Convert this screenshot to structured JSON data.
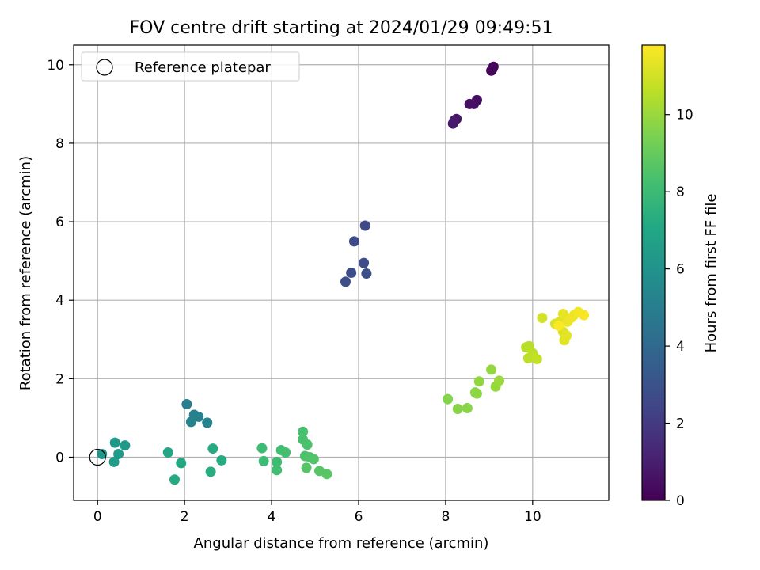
{
  "chart_data": {
    "type": "scatter",
    "title": "FOV centre drift starting at 2024/01/29 09:49:51",
    "xlabel": "Angular distance from reference (arcmin)",
    "ylabel": "Rotation from reference (arcmin)",
    "xlim": [
      -0.55,
      11.75
    ],
    "ylim": [
      -1.1,
      10.5
    ],
    "x_ticks": [
      "0",
      "2",
      "4",
      "6",
      "8",
      "10"
    ],
    "y_ticks": [
      "0",
      "2",
      "4",
      "6",
      "8",
      "10"
    ],
    "grid": true,
    "legend": {
      "placement": "upper-left",
      "entries": [
        "Reference platepar"
      ]
    },
    "reference_point": {
      "x": 0,
      "y": 0,
      "label": "Reference platepar"
    },
    "colorbar": {
      "label": "Hours from first FF file",
      "range": [
        0,
        11.8
      ],
      "ticks": [
        "0",
        "2",
        "4",
        "6",
        "8",
        "10"
      ],
      "colormap": "viridis"
    },
    "points": [
      {
        "x": 9.1,
        "y": 9.95,
        "t": 0.1
      },
      {
        "x": 9.05,
        "y": 9.85,
        "t": 0.15
      },
      {
        "x": 9.08,
        "y": 9.9,
        "t": 0.2
      },
      {
        "x": 8.72,
        "y": 9.1,
        "t": 0.4
      },
      {
        "x": 8.55,
        "y": 9.0,
        "t": 0.5
      },
      {
        "x": 8.65,
        "y": 9.0,
        "t": 0.55
      },
      {
        "x": 8.25,
        "y": 8.62,
        "t": 0.7
      },
      {
        "x": 8.17,
        "y": 8.5,
        "t": 0.8
      },
      {
        "x": 8.2,
        "y": 8.58,
        "t": 0.85
      },
      {
        "x": 6.15,
        "y": 5.9,
        "t": 2.6
      },
      {
        "x": 5.9,
        "y": 5.5,
        "t": 2.65
      },
      {
        "x": 6.12,
        "y": 4.95,
        "t": 2.7
      },
      {
        "x": 5.83,
        "y": 4.7,
        "t": 2.75
      },
      {
        "x": 6.18,
        "y": 4.68,
        "t": 2.8
      },
      {
        "x": 5.7,
        "y": 4.47,
        "t": 2.85
      },
      {
        "x": 2.05,
        "y": 1.35,
        "t": 5.0
      },
      {
        "x": 2.22,
        "y": 1.08,
        "t": 5.1
      },
      {
        "x": 2.32,
        "y": 1.03,
        "t": 5.15
      },
      {
        "x": 2.15,
        "y": 0.9,
        "t": 5.2
      },
      {
        "x": 2.52,
        "y": 0.88,
        "t": 5.25
      },
      {
        "x": 0.1,
        "y": 0.08,
        "t": 6.2
      },
      {
        "x": 0.4,
        "y": 0.37,
        "t": 6.3
      },
      {
        "x": 0.63,
        "y": 0.3,
        "t": 6.35
      },
      {
        "x": 0.48,
        "y": 0.08,
        "t": 6.4
      },
      {
        "x": 0.38,
        "y": -0.12,
        "t": 6.45
      },
      {
        "x": 1.62,
        "y": 0.12,
        "t": 7.0
      },
      {
        "x": 1.92,
        "y": -0.15,
        "t": 7.1
      },
      {
        "x": 1.77,
        "y": -0.57,
        "t": 7.15
      },
      {
        "x": 2.65,
        "y": 0.22,
        "t": 7.2
      },
      {
        "x": 2.85,
        "y": -0.08,
        "t": 7.25
      },
      {
        "x": 2.6,
        "y": -0.37,
        "t": 7.3
      },
      {
        "x": 3.78,
        "y": 0.23,
        "t": 8.0
      },
      {
        "x": 3.82,
        "y": -0.1,
        "t": 8.05
      },
      {
        "x": 4.12,
        "y": -0.12,
        "t": 8.1
      },
      {
        "x": 4.12,
        "y": -0.33,
        "t": 8.15
      },
      {
        "x": 4.22,
        "y": 0.18,
        "t": 8.2
      },
      {
        "x": 4.32,
        "y": 0.12,
        "t": 8.25
      },
      {
        "x": 4.72,
        "y": 0.65,
        "t": 8.3
      },
      {
        "x": 4.72,
        "y": 0.45,
        "t": 8.35
      },
      {
        "x": 4.82,
        "y": 0.32,
        "t": 8.4
      },
      {
        "x": 4.77,
        "y": 0.03,
        "t": 8.45
      },
      {
        "x": 4.88,
        "y": 0.0,
        "t": 8.5
      },
      {
        "x": 4.97,
        "y": -0.05,
        "t": 8.55
      },
      {
        "x": 4.8,
        "y": -0.27,
        "t": 8.6
      },
      {
        "x": 5.1,
        "y": -0.35,
        "t": 8.65
      },
      {
        "x": 5.27,
        "y": -0.43,
        "t": 8.7
      },
      {
        "x": 8.05,
        "y": 1.48,
        "t": 9.6
      },
      {
        "x": 8.28,
        "y": 1.23,
        "t": 9.65
      },
      {
        "x": 8.5,
        "y": 1.25,
        "t": 9.7
      },
      {
        "x": 8.68,
        "y": 1.65,
        "t": 9.75
      },
      {
        "x": 8.72,
        "y": 1.62,
        "t": 9.8
      },
      {
        "x": 8.77,
        "y": 1.93,
        "t": 9.85
      },
      {
        "x": 9.05,
        "y": 2.23,
        "t": 9.9
      },
      {
        "x": 9.15,
        "y": 1.8,
        "t": 9.95
      },
      {
        "x": 9.23,
        "y": 1.95,
        "t": 10.0
      },
      {
        "x": 9.85,
        "y": 2.8,
        "t": 10.5
      },
      {
        "x": 9.92,
        "y": 2.83,
        "t": 10.55
      },
      {
        "x": 9.9,
        "y": 2.52,
        "t": 10.6
      },
      {
        "x": 10.0,
        "y": 2.65,
        "t": 10.65
      },
      {
        "x": 10.1,
        "y": 2.5,
        "t": 10.7
      },
      {
        "x": 10.22,
        "y": 3.55,
        "t": 11.0
      },
      {
        "x": 10.52,
        "y": 3.4,
        "t": 11.1
      },
      {
        "x": 10.62,
        "y": 3.45,
        "t": 11.15
      },
      {
        "x": 10.7,
        "y": 3.2,
        "t": 11.2
      },
      {
        "x": 10.73,
        "y": 2.98,
        "t": 11.25
      },
      {
        "x": 10.78,
        "y": 3.1,
        "t": 11.3
      },
      {
        "x": 10.7,
        "y": 3.65,
        "t": 11.4
      },
      {
        "x": 10.8,
        "y": 3.45,
        "t": 11.45
      },
      {
        "x": 10.88,
        "y": 3.55,
        "t": 11.5
      },
      {
        "x": 10.95,
        "y": 3.62,
        "t": 11.55
      },
      {
        "x": 11.05,
        "y": 3.7,
        "t": 11.6
      },
      {
        "x": 11.18,
        "y": 3.62,
        "t": 11.7
      },
      {
        "x": 10.6,
        "y": 3.35,
        "t": 11.75
      }
    ]
  }
}
